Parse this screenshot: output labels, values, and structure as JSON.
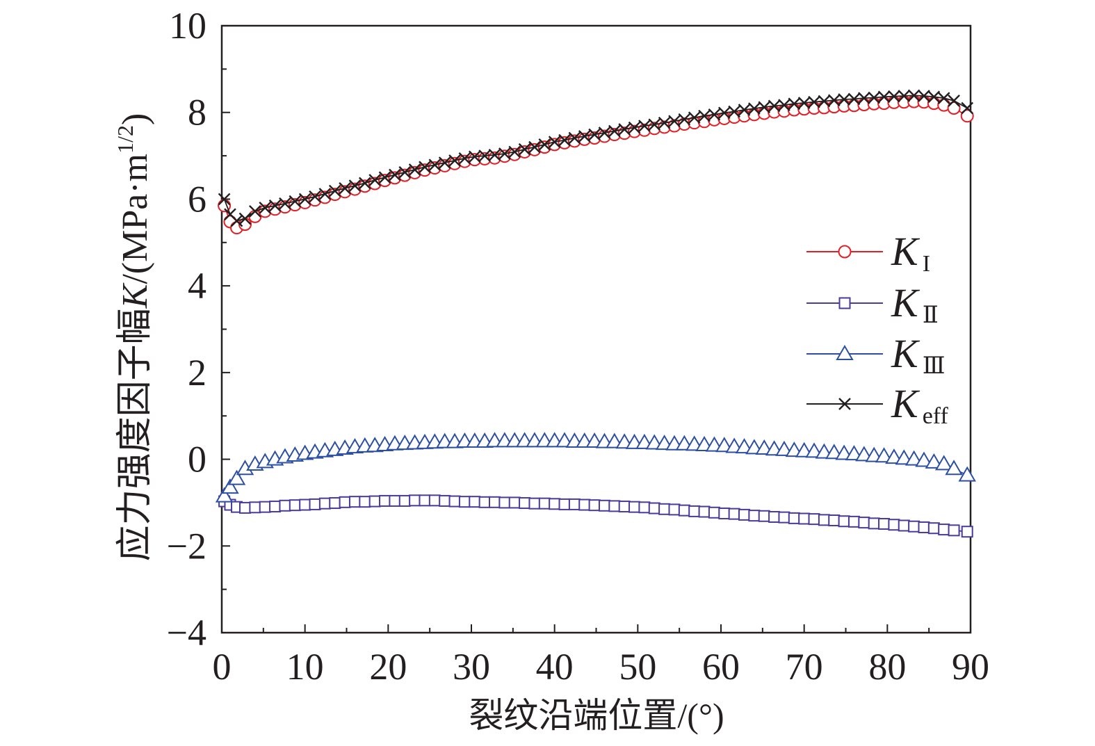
{
  "chart_data": {
    "type": "line",
    "xlabel": "裂纹沿端位置/(°)",
    "ylabel": {
      "text": "应力强度因子幅",
      "var": "K",
      "unit": "/(MPa·m",
      "sup": "1/2",
      "close": ")"
    },
    "xlim": [
      0,
      90
    ],
    "ylim": [
      -4,
      10
    ],
    "x_ticks": [
      0,
      10,
      20,
      30,
      40,
      50,
      60,
      70,
      80,
      90
    ],
    "x_tick_labels": [
      "0",
      "10",
      "20",
      "30",
      "40",
      "50",
      "60",
      "70",
      "80",
      "90"
    ],
    "y_ticks": [
      -4,
      -2,
      0,
      2,
      4,
      6,
      8,
      10
    ],
    "y_tick_labels": [
      "−4",
      "−2",
      "0",
      "2",
      "4",
      "6",
      "8",
      "10"
    ],
    "grid": false,
    "legend_position": "right",
    "x": [
      0.3,
      1.0,
      1.8,
      2.8,
      4.0,
      5.2,
      6.4,
      7.6,
      8.8,
      10.0,
      11.2,
      12.4,
      13.6,
      14.8,
      16.0,
      17.2,
      18.4,
      19.6,
      20.8,
      22.0,
      23.2,
      24.4,
      25.6,
      26.8,
      28.0,
      29.2,
      30.4,
      31.6,
      32.8,
      34.0,
      35.2,
      36.4,
      37.6,
      38.8,
      40.0,
      41.2,
      42.4,
      43.6,
      44.8,
      46.0,
      47.2,
      48.4,
      49.6,
      50.8,
      52.0,
      53.2,
      54.4,
      55.6,
      56.8,
      58.0,
      59.2,
      60.4,
      61.6,
      62.8,
      64.0,
      65.2,
      66.4,
      67.6,
      68.8,
      70.0,
      71.2,
      72.4,
      73.6,
      74.8,
      76.0,
      77.2,
      78.4,
      79.6,
      80.8,
      82.0,
      83.2,
      84.4,
      85.6,
      86.8,
      88.0,
      89.6
    ],
    "series": [
      {
        "symbol": "K",
        "sub": "I",
        "marker": "circle",
        "color": "#e31e24",
        "values": [
          5.85,
          5.48,
          5.34,
          5.42,
          5.6,
          5.72,
          5.77,
          5.82,
          5.87,
          5.92,
          5.98,
          6.04,
          6.11,
          6.17,
          6.23,
          6.3,
          6.36,
          6.43,
          6.49,
          6.55,
          6.61,
          6.67,
          6.72,
          6.77,
          6.82,
          6.87,
          6.91,
          6.93,
          6.95,
          6.99,
          7.03,
          7.09,
          7.14,
          7.2,
          7.26,
          7.3,
          7.34,
          7.38,
          7.41,
          7.45,
          7.49,
          7.52,
          7.56,
          7.59,
          7.63,
          7.66,
          7.69,
          7.73,
          7.76,
          7.79,
          7.83,
          7.86,
          7.89,
          7.92,
          7.95,
          7.98,
          8.01,
          8.03,
          8.06,
          8.08,
          8.1,
          8.11,
          8.13,
          8.15,
          8.16,
          8.18,
          8.2,
          8.21,
          8.23,
          8.24,
          8.25,
          8.24,
          8.21,
          8.17,
          8.1,
          7.92
        ]
      },
      {
        "symbol": "K",
        "sub": "Ⅱ",
        "marker": "square",
        "color": "#4a3b9a",
        "values": [
          -0.97,
          -1.05,
          -1.1,
          -1.12,
          -1.11,
          -1.1,
          -1.09,
          -1.07,
          -1.06,
          -1.05,
          -1.04,
          -1.02,
          -1.01,
          -0.99,
          -0.98,
          -0.98,
          -0.97,
          -0.96,
          -0.96,
          -0.96,
          -0.95,
          -0.95,
          -0.95,
          -0.96,
          -0.97,
          -0.98,
          -0.98,
          -0.99,
          -0.99,
          -1.0,
          -1.0,
          -1.01,
          -1.02,
          -1.02,
          -1.03,
          -1.04,
          -1.04,
          -1.05,
          -1.06,
          -1.07,
          -1.08,
          -1.09,
          -1.1,
          -1.11,
          -1.13,
          -1.15,
          -1.16,
          -1.18,
          -1.2,
          -1.21,
          -1.23,
          -1.25,
          -1.26,
          -1.28,
          -1.3,
          -1.31,
          -1.33,
          -1.34,
          -1.36,
          -1.37,
          -1.38,
          -1.4,
          -1.41,
          -1.43,
          -1.44,
          -1.46,
          -1.48,
          -1.49,
          -1.51,
          -1.53,
          -1.55,
          -1.57,
          -1.59,
          -1.62,
          -1.64,
          -1.67
        ]
      },
      {
        "symbol": "K",
        "sub": "Ⅲ",
        "marker": "triangle",
        "color": "#2c4fa3",
        "values": [
          -0.85,
          -0.65,
          -0.45,
          -0.22,
          -0.12,
          -0.06,
          0.0,
          0.05,
          0.09,
          0.13,
          0.16,
          0.19,
          0.22,
          0.25,
          0.28,
          0.3,
          0.31,
          0.33,
          0.35,
          0.36,
          0.37,
          0.38,
          0.39,
          0.4,
          0.4,
          0.41,
          0.41,
          0.41,
          0.42,
          0.42,
          0.42,
          0.42,
          0.42,
          0.42,
          0.42,
          0.42,
          0.41,
          0.41,
          0.41,
          0.4,
          0.4,
          0.39,
          0.38,
          0.38,
          0.37,
          0.36,
          0.35,
          0.35,
          0.34,
          0.33,
          0.32,
          0.31,
          0.29,
          0.28,
          0.26,
          0.25,
          0.23,
          0.22,
          0.2,
          0.19,
          0.18,
          0.16,
          0.15,
          0.13,
          0.12,
          0.1,
          0.08,
          0.07,
          0.04,
          0.02,
          0.0,
          -0.03,
          -0.07,
          -0.11,
          -0.22,
          -0.37
        ]
      },
      {
        "symbol": "K",
        "sub": "eff",
        "marker": "cross",
        "color": "#231f20",
        "values": [
          6.0,
          5.65,
          5.5,
          5.55,
          5.72,
          5.8,
          5.85,
          5.9,
          5.95,
          6.0,
          6.06,
          6.12,
          6.19,
          6.25,
          6.31,
          6.37,
          6.44,
          6.5,
          6.56,
          6.62,
          6.68,
          6.74,
          6.79,
          6.84,
          6.89,
          6.94,
          6.98,
          7.0,
          7.02,
          7.05,
          7.09,
          7.15,
          7.2,
          7.26,
          7.32,
          7.36,
          7.41,
          7.45,
          7.49,
          7.53,
          7.57,
          7.61,
          7.65,
          7.69,
          7.72,
          7.76,
          7.8,
          7.84,
          7.88,
          7.92,
          7.95,
          7.99,
          8.02,
          8.06,
          8.09,
          8.12,
          8.15,
          8.17,
          8.2,
          8.22,
          8.24,
          8.26,
          8.28,
          8.3,
          8.31,
          8.33,
          8.34,
          8.36,
          8.37,
          8.38,
          8.39,
          8.38,
          8.36,
          8.33,
          8.27,
          8.1
        ]
      }
    ]
  }
}
